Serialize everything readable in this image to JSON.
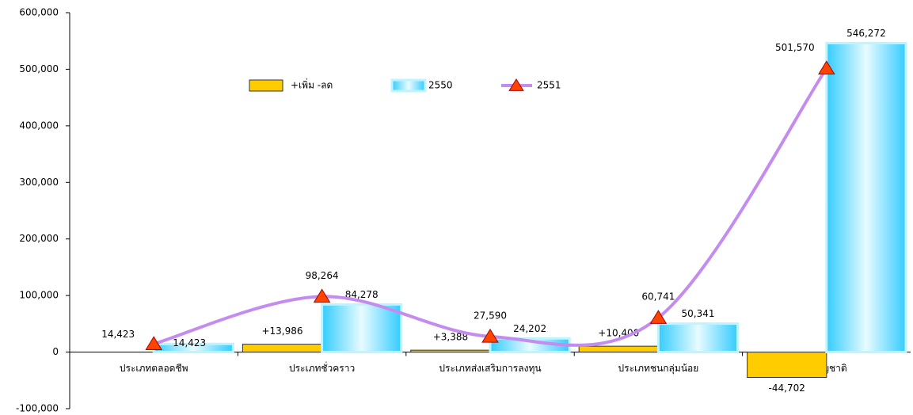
{
  "chart_data": {
    "type": "bar",
    "categories": [
      "ประเภทตลอดชีพ",
      "ประเภทชั่วคราว",
      "ประเภทส่งเสริมการลงทุน",
      "ประเภทชนกลุ่มน้อย",
      "3 สัญชาติ"
    ],
    "series": [
      {
        "name": "+เพิ่ม -ลด",
        "color": "#ffcc00",
        "values": [
          null,
          13986,
          3388,
          10400,
          -44702
        ],
        "value_labels": [
          null,
          "+13,986",
          "+3,388",
          "+10,400",
          "-44,702"
        ]
      },
      {
        "name": "2550",
        "color": "#33ccff",
        "values": [
          14423,
          84278,
          24202,
          50341,
          546272
        ],
        "value_labels": [
          "14,423",
          "84,278",
          "24,202",
          "50,341",
          "546,272"
        ]
      },
      {
        "name": "2551",
        "type": "line",
        "color": "#c58cf0",
        "marker_color": "#ff4400",
        "values": [
          14423,
          98264,
          27590,
          60741,
          501570
        ],
        "value_labels": [
          "14,423",
          "98,264",
          "27,590",
          "60,741",
          "501,570"
        ]
      }
    ],
    "ylim": [
      -100000,
      600000
    ],
    "yticks": [
      {
        "value": -100000,
        "label": "-100,000"
      },
      0,
      {
        "value": 100000,
        "label": "100,000"
      },
      {
        "value": 200000,
        "label": "200,000"
      },
      {
        "value": 300000,
        "label": "300,000"
      },
      {
        "value": 400000,
        "label": "400,000"
      },
      {
        "value": 500000,
        "label": "500,000"
      },
      {
        "value": 600000,
        "label": "600,000"
      }
    ]
  }
}
